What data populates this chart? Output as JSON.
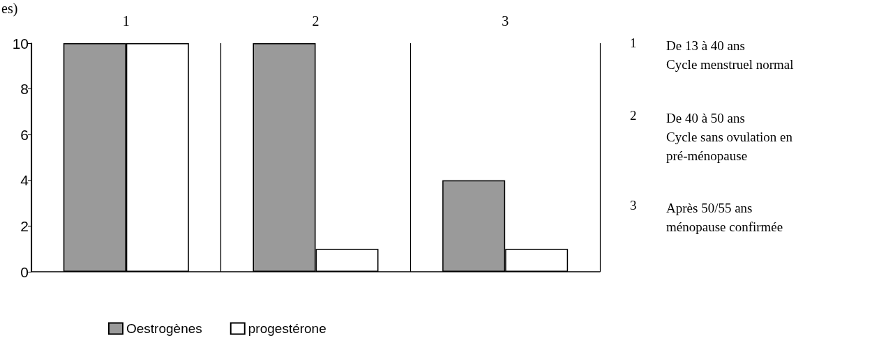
{
  "chart_data": {
    "type": "bar",
    "categories": [
      "1",
      "2",
      "3"
    ],
    "series": [
      {
        "name": "Oestrogènes",
        "color": "#9a9a9a",
        "values": [
          10,
          10,
          4
        ]
      },
      {
        "name": "progestérone",
        "color": "#ffffff",
        "values": [
          10,
          1,
          1
        ]
      }
    ],
    "ylim": [
      0,
      10
    ],
    "yticks": [
      0,
      2,
      4,
      6,
      8,
      10
    ],
    "grid": "x",
    "legend": "bottom",
    "annotations": [
      "es)",
      "1",
      "De 13 à 40 ans\nCycle menstruel normal",
      "2",
      "De 40 à 50 ans\nCycle sans ovulation en\npré-ménopause",
      "3",
      "Après 50/55 ans\nménopause confirmée"
    ]
  }
}
